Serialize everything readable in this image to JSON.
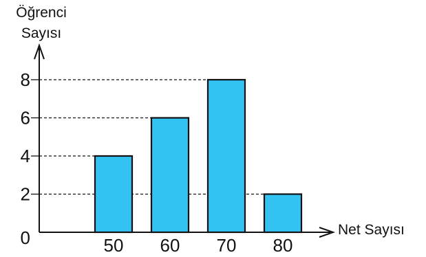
{
  "chart_data": {
    "type": "bar",
    "ylabel": [
      "Öğrenci",
      "Sayısı"
    ],
    "xlabel": "Net Sayısı",
    "categories": [
      "50",
      "60",
      "70",
      "80"
    ],
    "values": [
      4,
      6,
      8,
      2
    ],
    "y_ticks": [
      "0",
      "2",
      "4",
      "6",
      "8"
    ],
    "ylim": [
      0,
      8
    ],
    "grid": "dashed guide lines from y-axis to bar tops",
    "bar_color": "#33c3f3",
    "outline_color": "#111111"
  }
}
